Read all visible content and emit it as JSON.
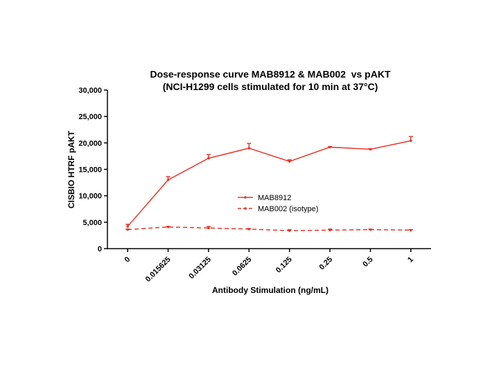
{
  "chart_data": {
    "type": "line",
    "title": "Dose-response curve MAB8912 & MAB002  vs pAKT",
    "subtitle": "(NCI-H1299 cells stimulated for 10 min at 37°C)",
    "x_label": "Antibody Stimulation (ng/mL)",
    "y_label": "CISBIO HTRF pAKT",
    "categories": [
      "0",
      "0.015625",
      "0.03125",
      "0.0625",
      "0.125",
      "0.25",
      "0.5",
      "1"
    ],
    "series": [
      {
        "name": "MAB8912",
        "color": "#e8372c",
        "line_style": "solid",
        "values": [
          4200,
          13000,
          17100,
          19000,
          16500,
          19200,
          18800,
          20400
        ],
        "errors": [
          400,
          600,
          700,
          900,
          300,
          100,
          100,
          800
        ]
      },
      {
        "name": "MAB002 (isotype)",
        "color": "#e8372c",
        "line_style": "dashed",
        "values": [
          3600,
          4100,
          3900,
          3700,
          3400,
          3500,
          3600,
          3500
        ],
        "errors": [
          100,
          100,
          300,
          100,
          200,
          200,
          100,
          100
        ]
      }
    ],
    "ylim": [
      0,
      30000
    ],
    "yticks": [
      0,
      {
        "value": 5000,
        "label": "5,000"
      },
      {
        "value": 10000,
        "label": "10,000"
      },
      {
        "value": 15000,
        "label": "15,000"
      },
      {
        "value": 20000,
        "label": "20,000"
      },
      {
        "value": 25000,
        "label": "25,000"
      },
      {
        "value": 30000,
        "label": "30,000"
      }
    ],
    "grid": false
  }
}
